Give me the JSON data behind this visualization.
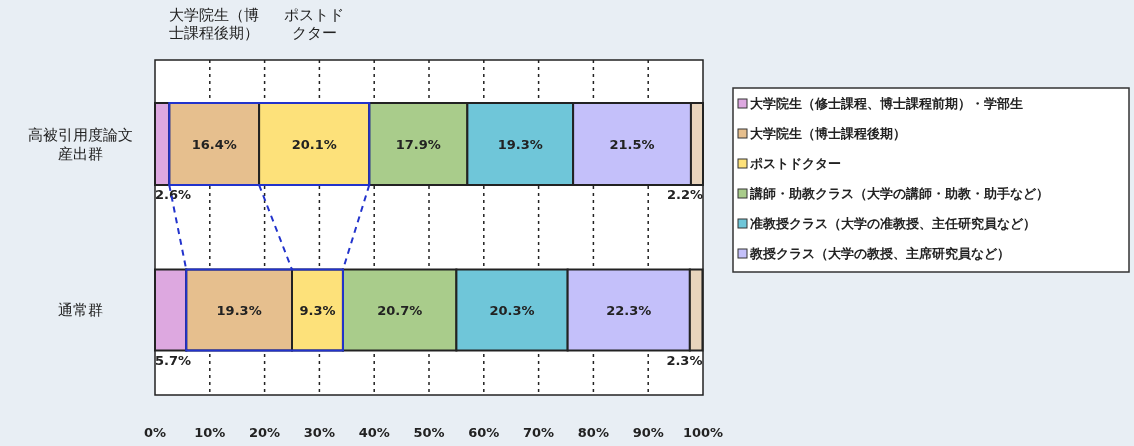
{
  "chart_data": {
    "type": "bar",
    "orientation": "horizontal",
    "stacked": true,
    "categories": [
      "高被引用度論文産出群",
      "通常群"
    ],
    "series": [
      {
        "name": "大学院生（修士課程、博士課程前期）・学部生",
        "color": "#dda8e0",
        "values": [
          2.6,
          5.7
        ],
        "value_labels": [
          "2.6%",
          "5.7%"
        ]
      },
      {
        "name": "大学院生（博士課程後期）",
        "color": "#e6bf8e",
        "values": [
          16.4,
          19.3
        ],
        "value_labels": [
          "16.4%",
          "19.3%"
        ]
      },
      {
        "name": "ポストドクター",
        "color": "#fde17a",
        "values": [
          20.1,
          9.3
        ],
        "value_labels": [
          "20.1%",
          "9.3%"
        ]
      },
      {
        "name": "講師・助教クラス（大学の講師・助教・助手など）",
        "color": "#a9cc8b",
        "values": [
          17.9,
          20.7
        ],
        "value_labels": [
          "17.9%",
          "20.7%"
        ]
      },
      {
        "name": "准教授クラス（大学の准教授、主任研究員など）",
        "color": "#6fc6d9",
        "values": [
          19.3,
          20.3
        ],
        "value_labels": [
          "19.3%",
          "20.3%"
        ]
      },
      {
        "name": "教授クラス（大学の教授、主席研究員など）",
        "color": "#c4c0fa",
        "values": [
          21.5,
          22.3
        ],
        "value_labels": [
          "21.5%",
          "22.3%"
        ]
      },
      {
        "color": "#e8d4bc",
        "values": [
          2.2,
          2.3
        ],
        "value_labels": [
          "2.2%",
          "2.3%"
        ]
      }
    ],
    "xlim": [
      0,
      100
    ],
    "xticks": [
      {
        "value": 0,
        "label": "0%"
      },
      {
        "value": 10,
        "label": "10%"
      },
      {
        "value": 20,
        "label": "20%"
      },
      {
        "value": 30,
        "label": "30%"
      },
      {
        "value": 40,
        "label": "40%"
      },
      {
        "value": 50,
        "label": "50%"
      },
      {
        "value": 60,
        "label": "60%"
      },
      {
        "value": 70,
        "label": "70%"
      },
      {
        "value": 80,
        "label": "80%"
      },
      {
        "value": 90,
        "label": "90%"
      },
      {
        "value": 100,
        "label": "100%"
      }
    ],
    "grid": "x",
    "legend": "right",
    "annotations": [
      "大学院生（博士課程後期）",
      "ポストドクター"
    ]
  }
}
